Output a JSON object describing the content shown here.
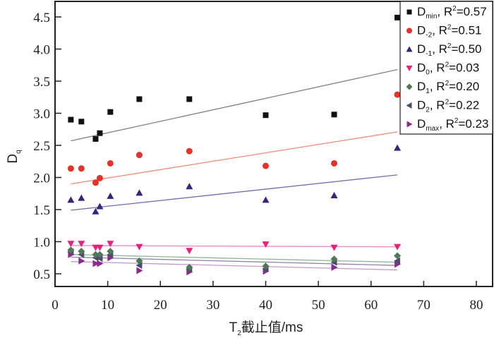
{
  "chart_data": {
    "type": "scatter",
    "title": "",
    "xlabel": "T₂截止值/ms",
    "xlabel_parts": {
      "base": "T",
      "sub": "2",
      "rest": "截止值/ms"
    },
    "ylabel": "Dq",
    "ylabel_parts": {
      "base": "D",
      "sub": "q"
    },
    "xlim": [
      0,
      85
    ],
    "ylim": [
      0.25,
      4.75
    ],
    "xticks": [
      0,
      10,
      20,
      30,
      40,
      50,
      60,
      70,
      80
    ],
    "xtick_labels": [
      "0",
      "10",
      "20",
      "30",
      "40",
      "50",
      "60",
      "70",
      "80"
    ],
    "yticks": [
      0.5,
      1.0,
      1.5,
      2.0,
      2.5,
      3.0,
      3.5,
      4.0,
      4.5
    ],
    "ytick_labels": [
      "0.5",
      "1.0",
      "1.5",
      "2.0",
      "2.5",
      "3.0",
      "3.5",
      "4.0",
      "4.5"
    ],
    "grid": false,
    "legend_position": "top-right",
    "x": [
      3,
      5,
      7.7,
      8.5,
      10.5,
      16,
      25.5,
      40,
      53,
      65
    ],
    "series": [
      {
        "name": "Dmin",
        "label_base": "D",
        "label_sub": "min",
        "r2_text": "=0.57",
        "marker": "square",
        "color": "#111111",
        "line_color": "#808080",
        "values": [
          2.9,
          2.87,
          2.6,
          2.69,
          3.02,
          3.22,
          3.22,
          2.97,
          2.98,
          4.49
        ],
        "fit": [
          2.57,
          3.68
        ]
      },
      {
        "name": "D-2",
        "label_base": "D",
        "label_sub": "-2",
        "r2_text": "=0.51",
        "marker": "circle",
        "color": "#e8302a",
        "line_color": "#f08a78",
        "values": [
          2.14,
          2.14,
          1.92,
          1.99,
          2.22,
          2.35,
          2.41,
          2.18,
          2.22,
          3.29
        ],
        "fit": [
          1.9,
          2.71
        ]
      },
      {
        "name": "D-1",
        "label_base": "D",
        "label_sub": "-1",
        "r2_text": "=0.50",
        "marker": "triangle-up",
        "color": "#3a237a",
        "line_color": "#7f68b0",
        "values": [
          1.65,
          1.68,
          1.47,
          1.55,
          1.71,
          1.76,
          1.86,
          1.65,
          1.72,
          2.46
        ],
        "fit": [
          1.49,
          2.04
        ]
      },
      {
        "name": "D0",
        "label_base": "D",
        "label_sub": "0",
        "r2_text": "=0.03",
        "marker": "triangle-down",
        "color": "#e8207e",
        "line_color": "#ee8cbc",
        "values": [
          0.97,
          0.97,
          0.91,
          0.91,
          0.97,
          0.92,
          0.86,
          0.96,
          0.91,
          0.92
        ],
        "fit": [
          0.94,
          0.92
        ]
      },
      {
        "name": "D1",
        "label_base": "D",
        "label_sub": "1",
        "r2_text": "=0.20",
        "marker": "diamond",
        "color": "#4e7a55",
        "line_color": "#8fb497",
        "values": [
          0.87,
          0.85,
          0.8,
          0.8,
          0.85,
          0.7,
          0.6,
          0.62,
          0.73,
          0.78
        ],
        "fit": [
          0.8,
          0.68
        ]
      },
      {
        "name": "D2",
        "label_base": "D",
        "label_sub": "2",
        "r2_text": "=0.22",
        "marker": "triangle-left",
        "color": "#4f4870",
        "line_color": "#8d86a8",
        "values": [
          0.84,
          0.8,
          0.75,
          0.74,
          0.8,
          0.63,
          0.57,
          0.58,
          0.68,
          0.7
        ],
        "fit": [
          0.76,
          0.63
        ]
      },
      {
        "name": "Dmax",
        "label_base": "D",
        "label_sub": "max",
        "r2_text": "=0.23",
        "marker": "triangle-right",
        "color": "#8a2a8c",
        "line_color": "#c598c6",
        "values": [
          0.8,
          0.7,
          0.66,
          0.66,
          0.75,
          0.55,
          0.53,
          0.54,
          0.6,
          0.65
        ],
        "fit": [
          0.69,
          0.56
        ]
      }
    ]
  }
}
